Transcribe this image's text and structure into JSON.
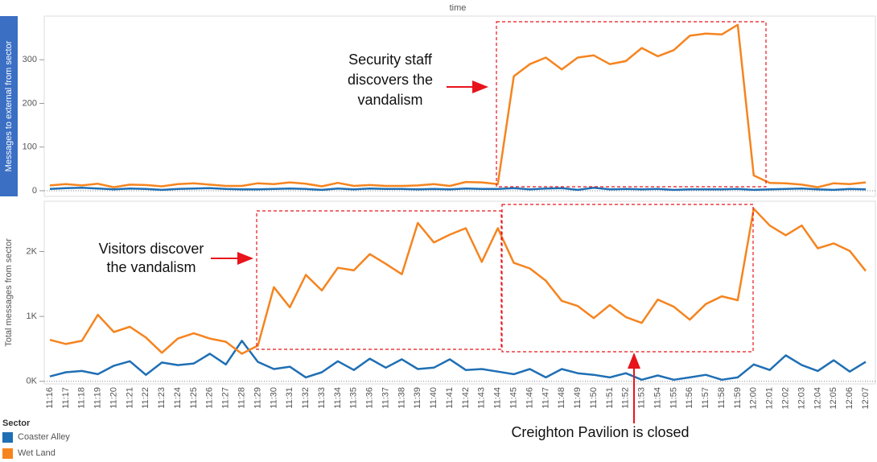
{
  "chart_data": {
    "type": "line",
    "title": "time",
    "categories": [
      "11:16",
      "11:17",
      "11:18",
      "11:19",
      "11:20",
      "11:21",
      "11:22",
      "11:23",
      "11:24",
      "11:25",
      "11:26",
      "11:27",
      "11:28",
      "11:29",
      "11:30",
      "11:31",
      "11:32",
      "11:33",
      "11:34",
      "11:35",
      "11:36",
      "11:37",
      "11:38",
      "11:39",
      "11:40",
      "11:41",
      "11:42",
      "11:43",
      "11:44",
      "11:45",
      "11:46",
      "11:47",
      "11:48",
      "11:49",
      "11:50",
      "11:51",
      "11:52",
      "11:53",
      "11:54",
      "11:55",
      "11:56",
      "11:57",
      "11:58",
      "11:59",
      "12:00",
      "12:01",
      "12:02",
      "12:03",
      "12:04",
      "12:05",
      "12:06",
      "12:07"
    ],
    "legend_title": "Sector",
    "sectors": [
      {
        "name": "Coaster Alley",
        "color": "#1f6fb4"
      },
      {
        "name": "Wet Land",
        "color": "#f5841f"
      }
    ],
    "panels": [
      {
        "ylabel": "Messages to external from sector",
        "ylim": [
          -13,
          400
        ],
        "yticks": [
          0,
          100,
          200,
          300
        ],
        "series": [
          {
            "values": [
              4,
              6,
              7,
              5,
              3,
              5,
              4,
              2,
              4,
              5,
              6,
              4,
              3,
              3,
              4,
              5,
              4,
              2,
              5,
              3,
              5,
              4,
              4,
              3,
              4,
              3,
              5,
              4,
              4,
              6,
              3,
              5,
              6,
              2,
              7,
              3,
              4,
              3,
              4,
              2,
              3,
              3,
              3,
              4,
              2,
              3,
              4,
              5,
              3,
              2,
              4,
              3
            ]
          },
          {
            "values": [
              12,
              15,
              12,
              16,
              8,
              14,
              13,
              10,
              15,
              17,
              14,
              11,
              11,
              17,
              15,
              19,
              16,
              10,
              18,
              11,
              13,
              11,
              11,
              12,
              15,
              11,
              20,
              19,
              15,
              262,
              290,
              305,
              278,
              305,
              310,
              290,
              297,
              327,
              308,
              322,
              355,
              360,
              358,
              380,
              35,
              18,
              17,
              14,
              8,
              17,
              15,
              19
            ]
          }
        ]
      },
      {
        "ylabel": "Total messages from sector",
        "ylim": [
          -40,
          2775
        ],
        "yticks": [
          {
            "value": 0,
            "label": "0K"
          },
          {
            "value": 1000,
            "label": "1K"
          },
          {
            "value": 2000,
            "label": "2K"
          }
        ],
        "series": [
          {
            "values": [
              75,
              140,
              160,
              110,
              240,
              310,
              100,
              290,
              250,
              275,
              425,
              260,
              625,
              300,
              190,
              225,
              60,
              140,
              310,
              175,
              350,
              210,
              340,
              190,
              210,
              340,
              175,
              190,
              150,
              110,
              190,
              60,
              190,
              125,
              100,
              60,
              125,
              25,
              90,
              25,
              60,
              100,
              25,
              60,
              260,
              175,
              400,
              250,
              160,
              325,
              150,
              300
            ]
          },
          {
            "values": [
              640,
              575,
              625,
              1025,
              760,
              840,
              675,
              440,
              660,
              740,
              660,
              610,
              425,
              550,
              1450,
              1140,
              1640,
              1400,
              1750,
              1710,
              1960,
              1810,
              1650,
              2440,
              2140,
              2260,
              2360,
              1840,
              2360,
              1825,
              1740,
              1550,
              1240,
              1160,
              975,
              1175,
              990,
              900,
              1260,
              1150,
              950,
              1190,
              1310,
              1250,
              2660,
              2400,
              2250,
              2400,
              2050,
              2125,
              2010,
              1700
            ]
          }
        ]
      }
    ],
    "annotations": [
      "Security staff",
      "discovers the",
      "vandalism",
      "Visitors discover",
      "the vandalism",
      "Creighton Pavilion is closed"
    ]
  }
}
